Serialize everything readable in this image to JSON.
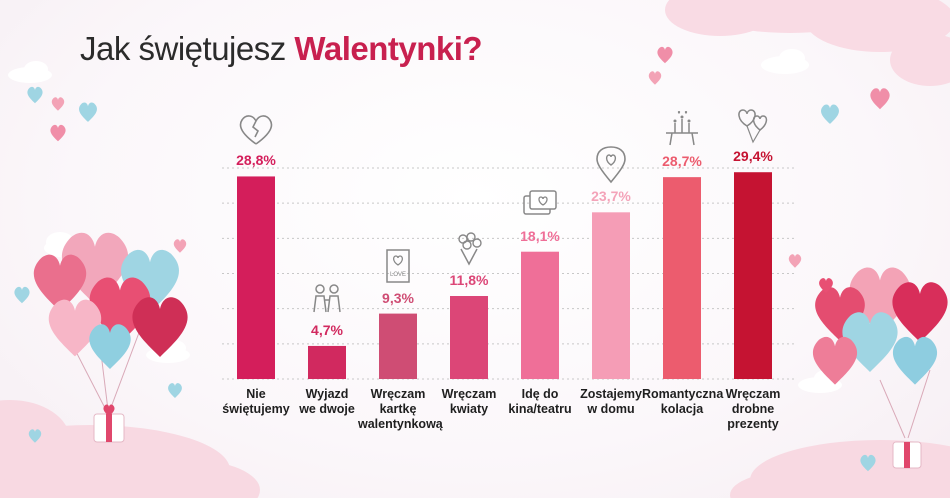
{
  "title": {
    "prefix": "Jak świętujesz ",
    "highlight": "Walentynki?"
  },
  "colors": {
    "title_highlight": "#c8204f",
    "grid": "#c8c8c8"
  },
  "icons": [
    "broken-heart-icon",
    "couple-icon",
    "love-card-icon",
    "flower-bouquet-icon",
    "cinema-tickets-icon",
    "home-location-pin-icon",
    "candle-dinner-icon",
    "heart-balloons-icon"
  ],
  "chart_data": {
    "type": "bar",
    "categories": [
      "Nie świętujemy",
      "Wyjazd we dwoje",
      "Wręczam kartkę walentynkową",
      "Wręczam kwiaty",
      "Idę do kina/teatru",
      "Zostajemy w domu",
      "Romantyczna kolacja",
      "Wręczam drobne prezenty"
    ],
    "category_lines": [
      [
        "Nie",
        "świętujemy"
      ],
      [
        "Wyjazd",
        "we dwoje"
      ],
      [
        "Wręczam",
        "kartkę",
        "walentynkową"
      ],
      [
        "Wręczam",
        "kwiaty"
      ],
      [
        "Idę do",
        "kina/teatru"
      ],
      [
        "Zostajemy",
        "w domu"
      ],
      [
        "Romantyczna",
        "kolacja"
      ],
      [
        "Wręczam",
        "drobne",
        "prezenty"
      ]
    ],
    "values": [
      28.8,
      4.7,
      9.3,
      11.8,
      18.1,
      23.7,
      28.7,
      29.4
    ],
    "value_labels": [
      "28,8%",
      "4,7%",
      "9,3%",
      "11,8%",
      "18,1%",
      "23,7%",
      "28,7%",
      "29,4%"
    ],
    "bar_colors": [
      "#d41e5b",
      "#d1295f",
      "#cf4d74",
      "#dc4677",
      "#ef6f98",
      "#f59db6",
      "#ec5c6e",
      "#c51332"
    ],
    "label_colors": [
      "#d41e5b",
      "#d1295f",
      "#cf4d74",
      "#dc4677",
      "#ef6f98",
      "#f4a3b9",
      "#ec5c6e",
      "#c51332"
    ],
    "ylim": [
      0,
      30
    ],
    "grid": true,
    "xlabel": "",
    "ylabel": ""
  }
}
